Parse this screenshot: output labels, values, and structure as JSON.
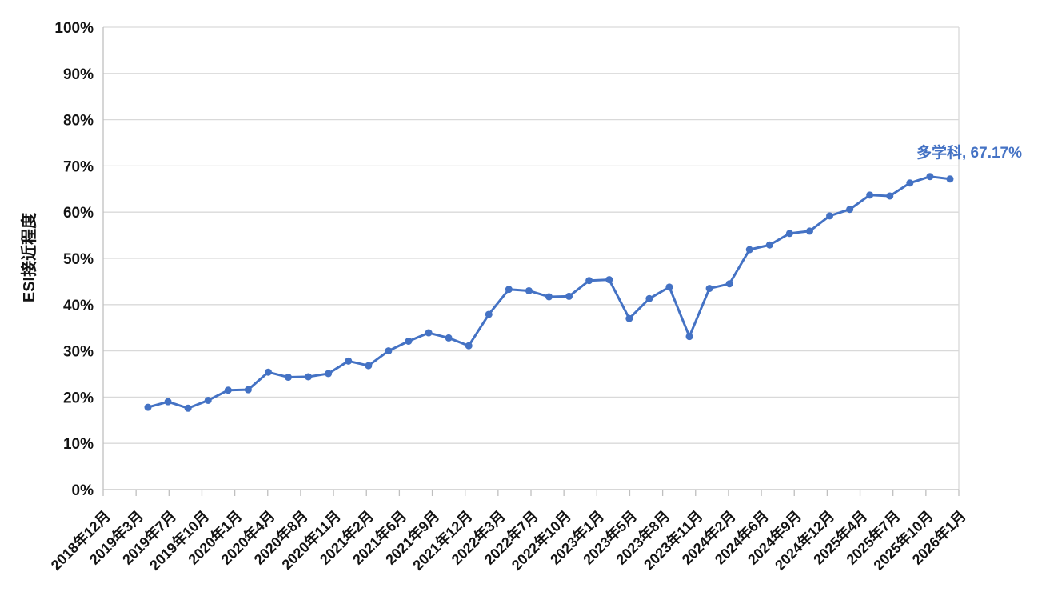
{
  "chart_data": {
    "type": "line",
    "title": "",
    "xlabel": "",
    "ylabel": "ESI接近程度",
    "ylim": [
      0,
      100
    ],
    "y_tick_step": 10,
    "y_tick_suffix": "%",
    "grid": "horizontal",
    "legend_position": "none",
    "x_tick_labels": [
      "2018年12月",
      "2019年3月",
      "2019年7月",
      "2019年10月",
      "2020年1月",
      "2020年4月",
      "2020年8月",
      "2020年11月",
      "2021年2月",
      "2021年6月",
      "2021年9月",
      "2021年12月",
      "2022年3月",
      "2022年7月",
      "2022年10月",
      "2023年1月",
      "2023年5月",
      "2023年8月",
      "2023年11月",
      "2024年2月",
      "2024年6月",
      "2024年9月",
      "2024年12月",
      "2025年4月",
      "2025年7月",
      "2025年10月",
      "2026年1月"
    ],
    "series": [
      {
        "name": "多学科",
        "color": "#4472C4",
        "values": [
          17.8,
          19.0,
          17.6,
          19.3,
          21.5,
          21.6,
          25.4,
          24.3,
          24.4,
          25.1,
          27.8,
          26.8,
          30.0,
          32.1,
          33.9,
          32.8,
          31.1,
          37.9,
          43.3,
          43.0,
          41.7,
          41.8,
          45.2,
          45.4,
          37.0,
          41.3,
          43.8,
          33.1,
          43.5,
          44.5,
          51.9,
          52.9,
          55.4,
          55.9,
          59.2,
          60.6,
          63.7,
          63.5,
          66.3,
          67.7,
          67.17
        ]
      }
    ],
    "annotation": {
      "text": "多学科, 67.17%",
      "color": "#4472C4"
    }
  },
  "colors": {
    "series_blue": "#4472C4",
    "gridline": "#D9D9D9",
    "axis_line": "#BFBFBF",
    "tick_label": "#141414",
    "background": "#FFFFFF"
  }
}
